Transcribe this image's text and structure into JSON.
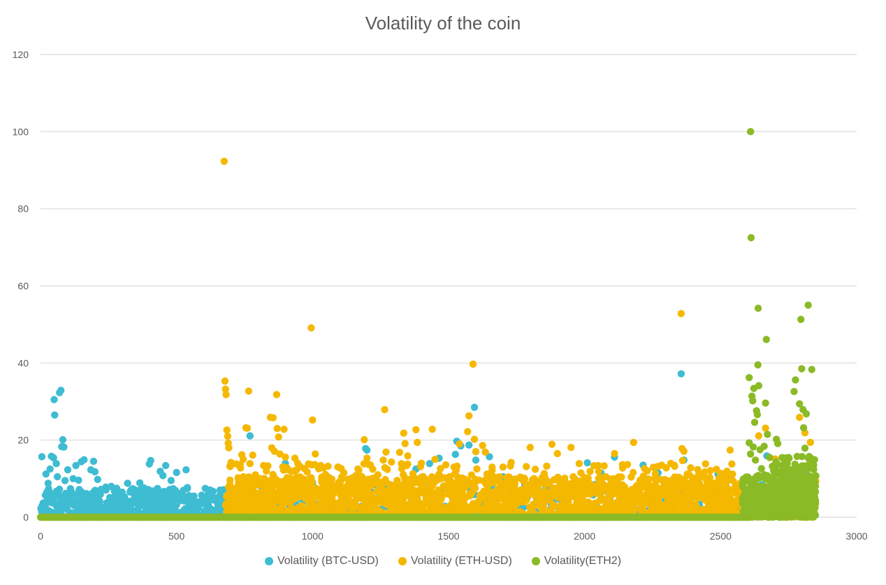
{
  "chart_data": {
    "type": "scatter",
    "title": "Volatility of the coin",
    "xlim": [
      0,
      3000
    ],
    "ylim": [
      0,
      120
    ],
    "x_ticks": [
      0,
      500,
      1000,
      1500,
      2000,
      2500,
      3000
    ],
    "y_ticks": [
      0,
      20,
      40,
      60,
      80,
      100,
      120
    ],
    "grid": true,
    "legend_position": "bottom",
    "series": [
      {
        "name": "Volatility (BTC-USD)",
        "color": "#3EBCD2",
        "points": [
          [
            5,
            15.7
          ],
          [
            20,
            11.2
          ],
          [
            28,
            8.8
          ],
          [
            35,
            12.5
          ],
          [
            40,
            15.8
          ],
          [
            48,
            15.4
          ],
          [
            50,
            30.5
          ],
          [
            52,
            26.5
          ],
          [
            58,
            13.9
          ],
          [
            62,
            10.5
          ],
          [
            70,
            32.3
          ],
          [
            75,
            32.9
          ],
          [
            78,
            18.3
          ],
          [
            82,
            20.1
          ],
          [
            86,
            18.2
          ],
          [
            90,
            9.5
          ],
          [
            100,
            12.3
          ],
          [
            110,
            7.4
          ],
          [
            120,
            10.0
          ],
          [
            130,
            13.4
          ],
          [
            140,
            9.6
          ],
          [
            150,
            14.4
          ],
          [
            160,
            14.9
          ],
          [
            170,
            6.1
          ],
          [
            185,
            12.3
          ],
          [
            195,
            14.5
          ],
          [
            200,
            11.8
          ],
          [
            210,
            9.8
          ],
          [
            220,
            6.3
          ],
          [
            240,
            7.8
          ],
          [
            260,
            8.0
          ],
          [
            280,
            7.5
          ],
          [
            300,
            6.5
          ],
          [
            320,
            8.8
          ],
          [
            345,
            7.2
          ],
          [
            365,
            8.9
          ],
          [
            380,
            7.6
          ],
          [
            400,
            13.8
          ],
          [
            405,
            14.7
          ],
          [
            410,
            6.8
          ],
          [
            420,
            5.5
          ],
          [
            440,
            11.9
          ],
          [
            450,
            10.8
          ],
          [
            460,
            13.4
          ],
          [
            475,
            7.2
          ],
          [
            480,
            9.5
          ],
          [
            500,
            11.6
          ],
          [
            520,
            6.0
          ],
          [
            535,
            12.3
          ],
          [
            540,
            7.7
          ],
          [
            560,
            5.1
          ],
          [
            580,
            4.0
          ],
          [
            600,
            3.5
          ],
          [
            620,
            2.6
          ],
          [
            640,
            4.5
          ],
          [
            660,
            5.8
          ],
          [
            770,
            21.1
          ],
          [
            900,
            14.0
          ],
          [
            1000,
            9.0
          ],
          [
            1195,
            17.8
          ],
          [
            1200,
            17.4
          ],
          [
            1215,
            8.5
          ],
          [
            1380,
            12.5
          ],
          [
            1400,
            10.3
          ],
          [
            1430,
            13.9
          ],
          [
            1465,
            15.3
          ],
          [
            1525,
            16.3
          ],
          [
            1530,
            19.7
          ],
          [
            1545,
            18.5
          ],
          [
            1575,
            18.7
          ],
          [
            1595,
            28.5
          ],
          [
            1600,
            14.8
          ],
          [
            1650,
            15.7
          ],
          [
            1700,
            10.5
          ],
          [
            1780,
            8.5
          ],
          [
            1870,
            9.0
          ],
          [
            1970,
            9.5
          ],
          [
            2010,
            14.1
          ],
          [
            2060,
            11.5
          ],
          [
            2110,
            15.6
          ],
          [
            2130,
            8.1
          ],
          [
            2215,
            13.5
          ],
          [
            2270,
            11.5
          ],
          [
            2355,
            37.2
          ],
          [
            2365,
            14.8
          ],
          [
            2400,
            9.4
          ],
          [
            2490,
            11.2
          ],
          [
            2580,
            8.9
          ],
          [
            2650,
            8.4
          ],
          [
            2670,
            15.9
          ],
          [
            2700,
            13.0
          ],
          [
            2750,
            9.6
          ],
          [
            2810,
            12.1
          ],
          [
            2840,
            6.8
          ]
        ]
      },
      {
        "name": "Volatility (ETH-USD)",
        "color": "#F5B800",
        "points": [
          [
            675,
            92.3
          ],
          [
            678,
            35.3
          ],
          [
            680,
            33.2
          ],
          [
            682,
            31.8
          ],
          [
            685,
            22.6
          ],
          [
            688,
            21.0
          ],
          [
            690,
            19.2
          ],
          [
            692,
            18.0
          ],
          [
            700,
            14.2
          ],
          [
            720,
            13.8
          ],
          [
            740,
            16.2
          ],
          [
            745,
            15.0
          ],
          [
            755,
            23.2
          ],
          [
            760,
            23.1
          ],
          [
            765,
            32.7
          ],
          [
            770,
            13.9
          ],
          [
            780,
            16.1
          ],
          [
            790,
            11.0
          ],
          [
            820,
            13.4
          ],
          [
            845,
            25.9
          ],
          [
            850,
            18.0
          ],
          [
            855,
            25.8
          ],
          [
            860,
            17.1
          ],
          [
            868,
            31.8
          ],
          [
            870,
            23.0
          ],
          [
            875,
            20.8
          ],
          [
            880,
            16.4
          ],
          [
            895,
            22.8
          ],
          [
            900,
            15.6
          ],
          [
            920,
            12.0
          ],
          [
            935,
            15.3
          ],
          [
            945,
            14.0
          ],
          [
            970,
            12.6
          ],
          [
            985,
            13.8
          ],
          [
            995,
            49.1
          ],
          [
            1000,
            25.2
          ],
          [
            1010,
            16.4
          ],
          [
            1030,
            13.4
          ],
          [
            1040,
            12.8
          ],
          [
            1100,
            7.2
          ],
          [
            1150,
            8.5
          ],
          [
            1170,
            12.2
          ],
          [
            1190,
            20.1
          ],
          [
            1200,
            15.3
          ],
          [
            1205,
            13.7
          ],
          [
            1240,
            11.0
          ],
          [
            1260,
            14.8
          ],
          [
            1265,
            27.9
          ],
          [
            1270,
            16.9
          ],
          [
            1290,
            14.3
          ],
          [
            1320,
            16.8
          ],
          [
            1335,
            21.8
          ],
          [
            1340,
            19.1
          ],
          [
            1350,
            15.9
          ],
          [
            1380,
            22.7
          ],
          [
            1385,
            19.4
          ],
          [
            1400,
            14.0
          ],
          [
            1440,
            22.8
          ],
          [
            1450,
            15.0
          ],
          [
            1470,
            12.6
          ],
          [
            1520,
            13.0
          ],
          [
            1540,
            19.0
          ],
          [
            1570,
            22.2
          ],
          [
            1575,
            26.3
          ],
          [
            1590,
            39.7
          ],
          [
            1595,
            20.2
          ],
          [
            1600,
            17.0
          ],
          [
            1625,
            18.6
          ],
          [
            1635,
            16.9
          ],
          [
            1660,
            12.1
          ],
          [
            1700,
            13.0
          ],
          [
            1730,
            14.2
          ],
          [
            1800,
            18.1
          ],
          [
            1880,
            18.9
          ],
          [
            1900,
            16.5
          ],
          [
            1950,
            18.1
          ],
          [
            1980,
            13.9
          ],
          [
            2050,
            13.4
          ],
          [
            2110,
            16.5
          ],
          [
            2180,
            19.4
          ],
          [
            2220,
            12.6
          ],
          [
            2260,
            11.3
          ],
          [
            2300,
            12.8
          ],
          [
            2355,
            52.8
          ],
          [
            2358,
            17.8
          ],
          [
            2365,
            17.1
          ],
          [
            2360,
            14.7
          ],
          [
            2390,
            12.8
          ],
          [
            2420,
            11.3
          ],
          [
            2480,
            8.4
          ],
          [
            2520,
            10.4
          ],
          [
            2535,
            17.4
          ],
          [
            2640,
            21.1
          ],
          [
            2665,
            23.1
          ],
          [
            2700,
            15.1
          ],
          [
            2790,
            25.9
          ],
          [
            2810,
            21.9
          ],
          [
            2830,
            19.4
          ],
          [
            2850,
            9.3
          ]
        ]
      },
      {
        "name": "Volatility(ETH2)",
        "color": "#8BBA27",
        "points": [
          [
            2610,
            100.0
          ],
          [
            2612,
            72.5
          ],
          [
            2605,
            36.2
          ],
          [
            2615,
            31.4
          ],
          [
            2618,
            30.2
          ],
          [
            2622,
            33.4
          ],
          [
            2625,
            24.6
          ],
          [
            2632,
            27.6
          ],
          [
            2635,
            26.6
          ],
          [
            2637,
            39.5
          ],
          [
            2638,
            54.2
          ],
          [
            2640,
            34.1
          ],
          [
            2605,
            19.3
          ],
          [
            2610,
            16.4
          ],
          [
            2620,
            18.2
          ],
          [
            2628,
            14.8
          ],
          [
            2645,
            17.5
          ],
          [
            2650,
            12.6
          ],
          [
            2660,
            18.4
          ],
          [
            2665,
            29.6
          ],
          [
            2668,
            46.1
          ],
          [
            2672,
            21.5
          ],
          [
            2680,
            15.5
          ],
          [
            2690,
            13.2
          ],
          [
            2695,
            12.0
          ],
          [
            2705,
            20.2
          ],
          [
            2710,
            19.1
          ],
          [
            2720,
            11.0
          ],
          [
            2740,
            15.2
          ],
          [
            2745,
            14.0
          ],
          [
            2770,
            32.6
          ],
          [
            2775,
            35.6
          ],
          [
            2785,
            12.1
          ],
          [
            2790,
            29.4
          ],
          [
            2795,
            51.3
          ],
          [
            2798,
            38.5
          ],
          [
            2803,
            27.9
          ],
          [
            2805,
            23.2
          ],
          [
            2810,
            17.9
          ],
          [
            2815,
            26.8
          ],
          [
            2820,
            13.4
          ],
          [
            2822,
            55.0
          ],
          [
            2830,
            14.2
          ],
          [
            2835,
            38.3
          ],
          [
            2845,
            14.9
          ],
          [
            2850,
            10.7
          ]
        ]
      }
    ],
    "dense_bands": [
      {
        "series": 0,
        "x": [
          0,
          680
        ],
        "y": [
          0,
          7.5
        ],
        "count": 520
      },
      {
        "series": 0,
        "x": [
          680,
          2850
        ],
        "y": [
          0,
          9.0
        ],
        "count": 420
      },
      {
        "series": 1,
        "x": [
          680,
          2590
        ],
        "y": [
          0,
          10.5
        ],
        "count": 1900
      },
      {
        "series": 1,
        "x": [
          680,
          2590
        ],
        "y": [
          6,
          14
        ],
        "count": 260
      },
      {
        "series": 1,
        "x": [
          2590,
          2850
        ],
        "y": [
          0,
          5
        ],
        "count": 120
      },
      {
        "series": 2,
        "x": [
          2580,
          2850
        ],
        "y": [
          0,
          11
        ],
        "count": 520
      },
      {
        "series": 2,
        "x": [
          2700,
          2850
        ],
        "y": [
          5,
          16
        ],
        "count": 110
      }
    ],
    "baseline": {
      "series": 2,
      "x": [
        0,
        2610
      ],
      "y": 0
    }
  }
}
